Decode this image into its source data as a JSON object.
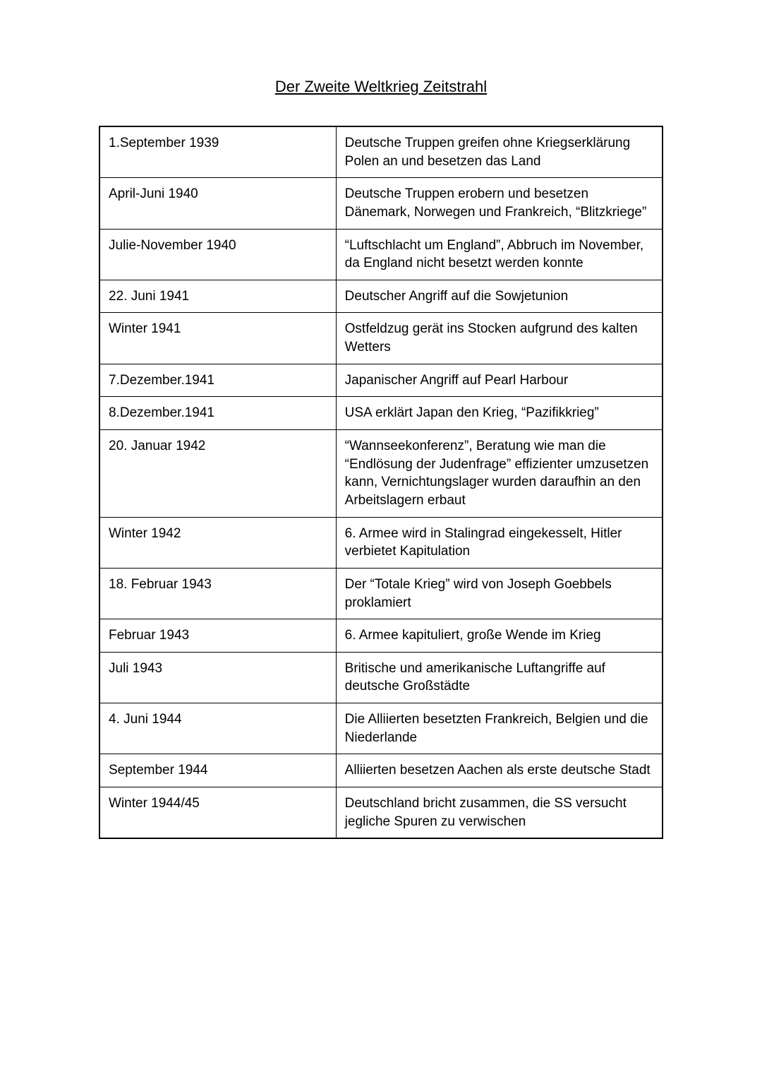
{
  "title": "Der Zweite Weltkrieg Zeitstrahl",
  "table": {
    "column_widths_percent": [
      42,
      58
    ],
    "border_color": "#000000",
    "background_color": "#ffffff",
    "text_color": "#000000",
    "font_size": 19,
    "rows": [
      {
        "date": "1.September 1939",
        "event": "Deutsche Truppen greifen ohne Kriegserklärung Polen an und besetzen das Land"
      },
      {
        "date": "April-Juni 1940",
        "event": "Deutsche Truppen erobern und besetzen Dänemark, Norwegen und Frankreich, “Blitzkriege”"
      },
      {
        "date": "Julie-November 1940",
        "event": "“Luftschlacht um England”, Abbruch im November, da England nicht besetzt werden konnte"
      },
      {
        "date": "22. Juni 1941",
        "event": "Deutscher Angriff auf die Sowjetunion"
      },
      {
        "date": "Winter 1941",
        "event": "Ostfeldzug gerät ins Stocken aufgrund des kalten Wetters"
      },
      {
        "date": "7.Dezember.1941",
        "event": "Japanischer Angriff auf Pearl Harbour"
      },
      {
        "date": "8.Dezember.1941",
        "event": "USA erklärt Japan den Krieg, “Pazifikkrieg”"
      },
      {
        "date": "20. Januar 1942",
        "event": "“Wannseekonferenz”, Beratung wie man die “Endlösung der Judenfrage” effizienter umzusetzen kann, Vernichtungslager wurden daraufhin an den Arbeitslagern erbaut"
      },
      {
        "date": "Winter 1942",
        "event": "6. Armee wird in Stalingrad eingekesselt, Hitler verbietet Kapitulation"
      },
      {
        "date": "18. Februar 1943",
        "event": "Der “Totale Krieg” wird von Joseph Goebbels proklamiert"
      },
      {
        "date": "Februar 1943",
        "event": "6. Armee kapituliert, große Wende im Krieg"
      },
      {
        "date": "Juli 1943",
        "event": "Britische und amerikanische Luftangriffe auf deutsche Großstädte"
      },
      {
        "date": "4. Juni 1944",
        "event": "Die Alliierten besetzten Frankreich, Belgien und die Niederlande"
      },
      {
        "date": "September 1944",
        "event": "Alliierten besetzen Aachen als erste deutsche Stadt"
      },
      {
        "date": "Winter 1944/45",
        "event": "Deutschland bricht zusammen, die SS versucht jegliche Spuren zu verwischen"
      }
    ]
  }
}
